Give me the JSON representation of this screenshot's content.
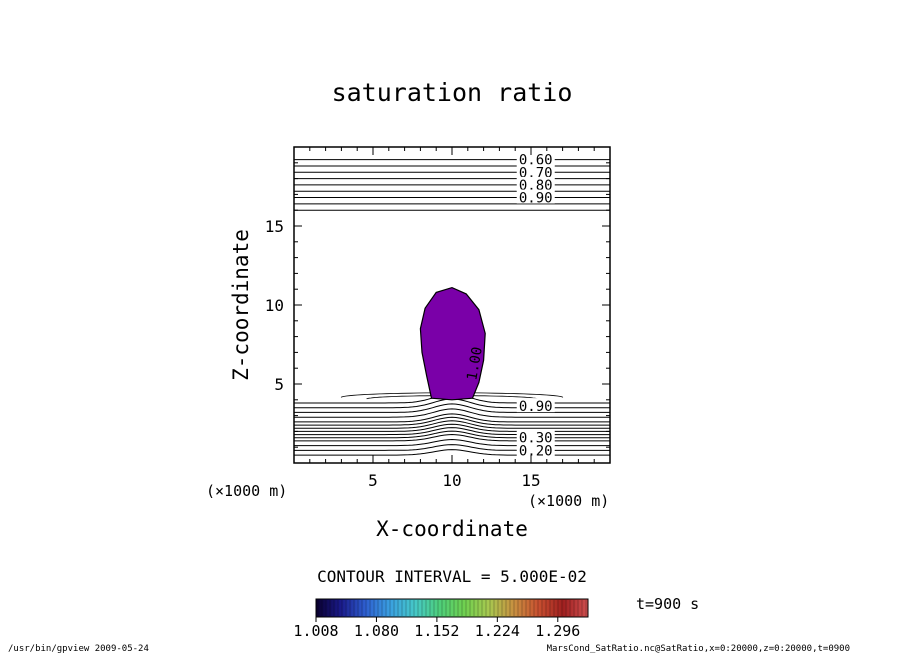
{
  "chart_data": {
    "type": "contour",
    "title": "saturation ratio",
    "xlabel": "X-coordinate",
    "ylabel": "Z-coordinate",
    "x_unit_label": "(×1000 m)",
    "y_unit_label": "(×1000 m)",
    "xlim": [
      0,
      20
    ],
    "ylim": [
      0,
      20
    ],
    "x_ticks": [
      5,
      10,
      15
    ],
    "y_ticks": [
      5,
      10,
      15
    ],
    "contour_interval_text": "CONTOUR INTERVAL = 5.000E-02",
    "contour_labels": [
      {
        "text": "0.60",
        "x": 15.3,
        "y": 19.2
      },
      {
        "text": "0.70",
        "x": 15.3,
        "y": 18.4
      },
      {
        "text": "0.80",
        "x": 15.3,
        "y": 17.6
      },
      {
        "text": "0.90",
        "x": 15.3,
        "y": 16.8
      },
      {
        "text": "1.00",
        "x": 11.4,
        "y": 6.3
      },
      {
        "text": "0.90",
        "x": 15.3,
        "y": 3.6
      },
      {
        "text": "0.30",
        "x": 15.3,
        "y": 1.6
      },
      {
        "text": "0.20",
        "x": 15.3,
        "y": 0.8
      }
    ],
    "horizontal_contours_top": [
      16.0,
      16.4,
      16.8,
      17.2,
      17.6,
      18.0,
      18.4,
      18.8,
      19.2
    ],
    "horizontal_contours_bottom": [
      0.5,
      0.8,
      1.1,
      1.4,
      1.6,
      1.8,
      2.0,
      2.2,
      2.4,
      2.6,
      2.9,
      3.2,
      3.5,
      3.8
    ],
    "supersaturated_region": {
      "color": "#7a00a8",
      "outline": [
        [
          8.7,
          4.1
        ],
        [
          8.4,
          5.5
        ],
        [
          8.1,
          7.0
        ],
        [
          8.0,
          8.5
        ],
        [
          8.3,
          9.8
        ],
        [
          9.0,
          10.8
        ],
        [
          10.0,
          11.1
        ],
        [
          10.9,
          10.7
        ],
        [
          11.7,
          9.7
        ],
        [
          12.1,
          8.2
        ],
        [
          12.0,
          6.5
        ],
        [
          11.7,
          5.1
        ],
        [
          11.3,
          4.1
        ],
        [
          10.0,
          4.0
        ]
      ]
    },
    "colorbar": {
      "ticks": [
        "1.008",
        "1.080",
        "1.152",
        "1.224",
        "1.296"
      ],
      "min": 1.008,
      "max": 1.332,
      "colors": [
        "#0a0030",
        "#1a1a8a",
        "#2e5fd0",
        "#3aa0e0",
        "#46c8c8",
        "#4ecf7a",
        "#6fd050",
        "#a8c850",
        "#c89040",
        "#c85030",
        "#a02020",
        "#d05050"
      ]
    }
  },
  "annotation_time": "t=900 s",
  "footer": {
    "left": "/usr/bin/gpview   2009-05-24",
    "right": "MarsCond_SatRatio.nc@SatRatio,x=0:20000,z=0:20000,t=0900"
  }
}
